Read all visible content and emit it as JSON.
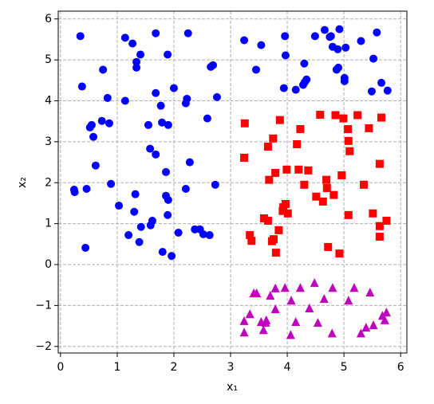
{
  "chart_data": {
    "type": "scatter",
    "xlabel": "x₁",
    "ylabel": "x₂",
    "xlim": [
      -0.04,
      6.11
    ],
    "ylim": [
      -2.16,
      6.19
    ],
    "xticks": [
      0,
      1,
      2,
      3,
      4,
      5,
      6
    ],
    "yticks": [
      {
        "value": -2,
        "label": "−2"
      },
      {
        "value": -1,
        "label": "−1"
      },
      0,
      1,
      2,
      3,
      4,
      5,
      6
    ],
    "grid": true,
    "series": [
      {
        "color": "#0000ff",
        "marker": "circle",
        "x": [
          0.35,
          1.14,
          1.27,
          1.68,
          2.25,
          1.41,
          1.34,
          1.34,
          1.89,
          0.75,
          0.38,
          0.83,
          1.14,
          1.68,
          2.0,
          2.23,
          2.21,
          1.77,
          2.76,
          2.65,
          2.69,
          0.55,
          0.52,
          0.73,
          0.86,
          0.58,
          1.55,
          1.79,
          1.9,
          2.59,
          1.58,
          1.68,
          0.62,
          1.86,
          2.28,
          0.24,
          0.25,
          0.46,
          0.89,
          1.32,
          2.21,
          2.73,
          1.86,
          1.9,
          1.03,
          1.3,
          1.62,
          1.59,
          1.89,
          1.42,
          2.08,
          2.37,
          2.46,
          2.52,
          2.63,
          1.2,
          1.39,
          0.44,
          1.8,
          1.96,
          3.24,
          3.54,
          3.96,
          4.49,
          4.66,
          4.75,
          4.77,
          4.92,
          4.8,
          4.89,
          5.03,
          5.3,
          5.58,
          5.52,
          3.97,
          4.3,
          4.9,
          4.87,
          3.45,
          4.34,
          4.31,
          4.28,
          5.01,
          5.01,
          3.94,
          4.15,
          5.49,
          5.66,
          5.77
        ],
        "y": [
          5.58,
          5.54,
          5.4,
          5.65,
          5.65,
          5.13,
          4.95,
          4.81,
          5.13,
          4.76,
          4.35,
          4.07,
          4.0,
          4.19,
          4.31,
          4.05,
          3.94,
          3.88,
          4.09,
          4.83,
          4.87,
          3.41,
          3.35,
          3.51,
          3.45,
          3.12,
          3.41,
          3.47,
          3.41,
          3.57,
          2.83,
          2.69,
          2.42,
          2.26,
          2.5,
          1.83,
          1.77,
          1.85,
          1.97,
          1.72,
          1.85,
          1.95,
          1.68,
          1.58,
          1.44,
          1.29,
          1.07,
          0.96,
          1.21,
          0.92,
          0.78,
          0.86,
          0.86,
          0.74,
          0.72,
          0.72,
          0.55,
          0.41,
          0.31,
          0.21,
          5.48,
          5.36,
          5.58,
          5.58,
          5.73,
          5.56,
          5.58,
          5.75,
          5.32,
          5.26,
          5.3,
          5.46,
          5.67,
          5.03,
          5.11,
          4.91,
          4.81,
          4.76,
          4.76,
          4.52,
          4.46,
          4.39,
          4.56,
          4.48,
          4.31,
          4.27,
          4.23,
          4.44,
          4.25
        ]
      },
      {
        "color": "#ff0000",
        "marker": "square",
        "x": [
          3.25,
          3.87,
          4.23,
          4.58,
          4.85,
          4.99,
          5.24,
          5.66,
          5.44,
          5.07,
          3.75,
          3.66,
          4.17,
          5.08,
          5.1,
          3.24,
          5.63,
          3.79,
          3.99,
          4.2,
          4.37,
          3.68,
          4.69,
          4.96,
          4.3,
          5.35,
          4.7,
          4.82,
          4.51,
          4.63,
          3.97,
          3.93,
          3.92,
          4.01,
          3.59,
          3.66,
          5.08,
          5.51,
          5.63,
          5.75,
          3.85,
          3.34,
          3.37,
          3.76,
          3.73,
          5.63,
          4.72,
          4.92,
          3.8
        ],
        "y": [
          3.45,
          3.53,
          3.31,
          3.66,
          3.65,
          3.57,
          3.65,
          3.59,
          3.33,
          3.31,
          3.08,
          2.88,
          2.94,
          3.02,
          2.77,
          2.61,
          2.46,
          2.24,
          2.32,
          2.32,
          2.3,
          2.07,
          2.07,
          2.18,
          1.95,
          1.95,
          1.87,
          1.7,
          1.66,
          1.54,
          1.48,
          1.4,
          1.31,
          1.25,
          1.13,
          1.07,
          1.21,
          1.25,
          0.94,
          1.07,
          0.84,
          0.72,
          0.58,
          0.62,
          0.57,
          0.68,
          0.43,
          0.27,
          0.29
        ]
      },
      {
        "color": "#bf00bf",
        "marker": "triangle",
        "x": [
          3.41,
          3.46,
          3.79,
          3.96,
          4.23,
          4.48,
          4.8,
          5.18,
          5.46,
          3.7,
          4.07,
          4.65,
          5.08,
          3.34,
          3.79,
          4.39,
          5.75,
          5.68,
          3.24,
          3.54,
          3.63,
          4.15,
          4.54,
          3.62,
          5.72,
          5.39,
          5.52,
          5.3,
          3.24,
          3.58,
          4.06,
          4.79
        ],
        "y": [
          -0.7,
          -0.7,
          -0.58,
          -0.57,
          -0.57,
          -0.45,
          -0.57,
          -0.57,
          -0.68,
          -0.76,
          -0.88,
          -0.84,
          -0.88,
          -1.21,
          -1.09,
          -1.07,
          -1.17,
          -1.25,
          -1.38,
          -1.4,
          -1.36,
          -1.4,
          -1.42,
          -1.42,
          -1.36,
          -1.54,
          -1.48,
          -1.68,
          -1.66,
          -1.6,
          -1.72,
          -1.68
        ]
      }
    ]
  }
}
